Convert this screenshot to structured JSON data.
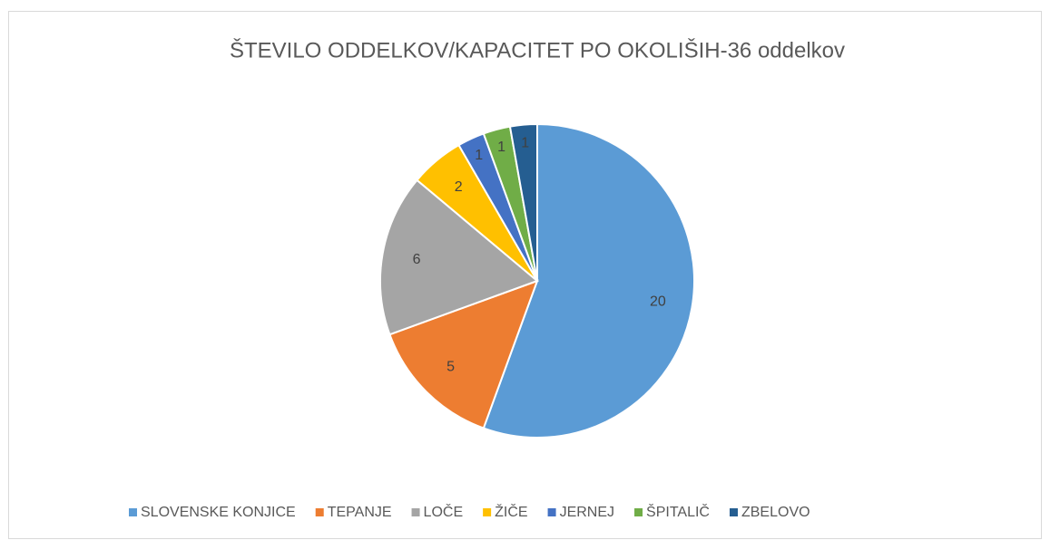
{
  "chart_data": {
    "type": "pie",
    "title": "ŠTEVILO ODDELKOV/KAPACITET PO OKOLIŠIH-36 oddelkov",
    "categories": [
      "SLOVENSKE KONJICE",
      "TEPANJE",
      "LOČE",
      "ŽIČE",
      "JERNEJ",
      "ŠPITALIČ",
      "ZBELOVO"
    ],
    "values": [
      20,
      5,
      6,
      2,
      1,
      1,
      1
    ],
    "colors": [
      "#5b9bd5",
      "#ed7d31",
      "#a5a5a5",
      "#ffc000",
      "#4472c4",
      "#70ad47",
      "#255e91"
    ],
    "legend": "bottom"
  }
}
